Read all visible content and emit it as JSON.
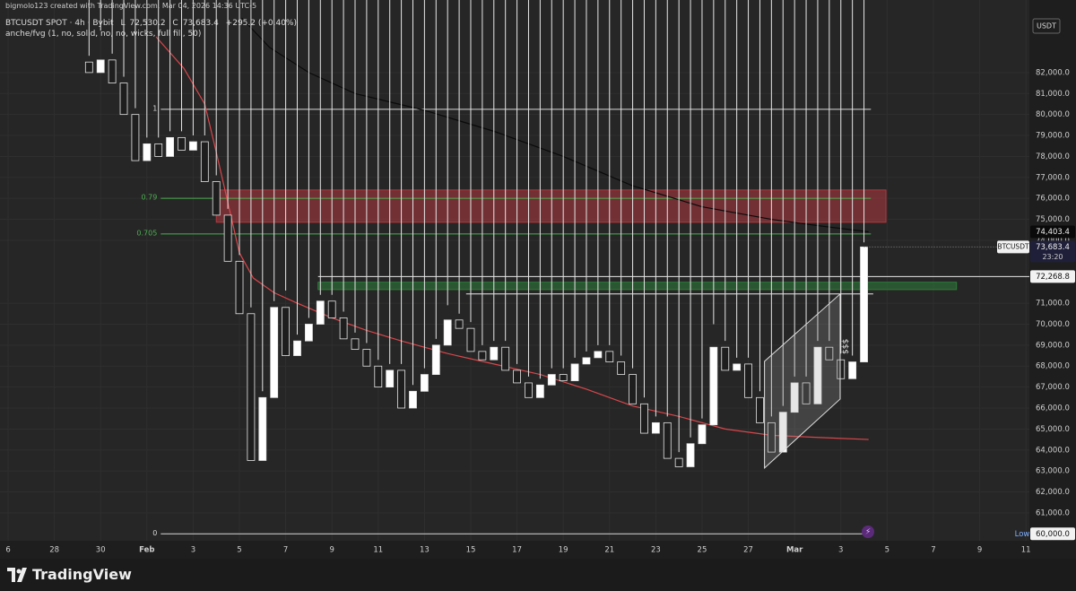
{
  "header": {
    "credit": "bigmolo123 created with TradingView.com, Mar 04, 2026 14:36 UTC-5",
    "symbol": "BTCUSDT SPOT · 4h · Bybit",
    "ohlc": [
      "L",
      "72,530.2",
      "C",
      "73,683.4",
      "+295.2 (+0.40%)"
    ],
    "indicator": "anche/fvg (1, no, solid, no, no, wicks, full fill, 50)"
  },
  "chart_data": {
    "type": "candlestick",
    "symbol": "BTCUSDT",
    "currency": "USDT",
    "countdown": "23:20",
    "x": [
      3.5,
      4,
      4.5,
      5,
      5.5,
      6,
      6.5,
      7,
      7.5,
      8,
      8.5,
      9,
      9.5,
      10,
      10.5,
      11,
      11.5,
      12,
      12.5,
      13,
      13.5,
      14,
      14.5,
      15,
      15.5,
      16,
      16.5,
      17,
      17.5,
      18,
      18.5,
      19,
      19.5,
      20,
      20.5,
      21,
      21.5,
      22,
      22.5,
      23,
      23.5,
      24,
      24.5,
      25,
      25.5,
      26,
      26.5,
      27,
      27.5,
      28,
      28.5,
      29,
      29.5,
      30,
      30.5,
      31,
      31.5,
      32,
      32.5,
      33,
      33.5,
      34,
      34.5,
      35,
      35.5,
      36,
      36.5,
      37
    ],
    "open": [
      82500,
      82000,
      82600,
      81500,
      80000,
      77800,
      78600,
      78000,
      78900,
      78300,
      78700,
      76800,
      75200,
      73000,
      70500,
      63500,
      66500,
      70800,
      68500,
      69200,
      70000,
      71100,
      70300,
      69300,
      68800,
      68000,
      67000,
      67800,
      66000,
      66800,
      67600,
      69000,
      70200,
      69800,
      68700,
      68300,
      68900,
      67800,
      67200,
      66500,
      67100,
      67600,
      67300,
      68100,
      68400,
      68700,
      68200,
      67600,
      66200,
      64800,
      65300,
      63600,
      63200,
      64300,
      65200,
      68900,
      67800,
      68100,
      66500,
      65300,
      63900,
      65800,
      67200,
      66200,
      68900,
      68300,
      67400,
      68200
    ],
    "high": [
      82800,
      84000,
      82900,
      81800,
      80300,
      78900,
      78900,
      79200,
      79200,
      79000,
      79000,
      77100,
      75500,
      73300,
      70800,
      66800,
      71100,
      71600,
      69500,
      70300,
      71400,
      71400,
      70600,
      69600,
      69100,
      68300,
      68100,
      68100,
      67100,
      67900,
      69300,
      70900,
      70500,
      70100,
      69000,
      69200,
      69200,
      68100,
      67500,
      67400,
      67900,
      67900,
      68400,
      68700,
      69000,
      69000,
      68500,
      67900,
      66500,
      65600,
      65600,
      63900,
      64600,
      65500,
      70000,
      69200,
      68400,
      68400,
      66800,
      65600,
      66100,
      67500,
      67500,
      69200,
      69200,
      68600,
      68500,
      73900
    ],
    "low": {
      "text": "Low",
      "value": 60000,
      "label": "60,000.0"
    },
    "close": [
      82000,
      82600,
      81500,
      80000,
      77800,
      78600,
      78000,
      78900,
      78300,
      78700,
      76800,
      75200,
      73000,
      70500,
      63500,
      66500,
      70800,
      68500,
      69200,
      70000,
      71100,
      70300,
      69300,
      68800,
      68000,
      67000,
      67800,
      66000,
      66800,
      67600,
      69000,
      70200,
      69800,
      68700,
      68300,
      68900,
      67800,
      67200,
      66500,
      67100,
      67600,
      67300,
      68100,
      68400,
      68700,
      68200,
      67600,
      66200,
      64800,
      65300,
      63600,
      63200,
      64300,
      65200,
      68900,
      67800,
      68100,
      66500,
      65300,
      63900,
      65800,
      67200,
      66200,
      68900,
      68300,
      67400,
      68200,
      73683.4
    ],
    "up_color": "#ffffff",
    "down_color": "#1e1e1e",
    "xlim": [
      -0.35,
      44.15
    ],
    "xticks": [
      {
        "value": 0,
        "label": "6"
      },
      {
        "value": 2,
        "label": "28"
      },
      {
        "value": 4,
        "label": "30"
      },
      {
        "value": 6,
        "label": "Feb"
      },
      {
        "value": 8,
        "label": "3"
      },
      {
        "value": 10,
        "label": "5"
      },
      {
        "value": 12,
        "label": "7"
      },
      {
        "value": 14,
        "label": "9"
      },
      {
        "value": 16,
        "label": "11"
      },
      {
        "value": 18,
        "label": "13"
      },
      {
        "value": 20,
        "label": "15"
      },
      {
        "value": 22,
        "label": "17"
      },
      {
        "value": 24,
        "label": "19"
      },
      {
        "value": 26,
        "label": "21"
      },
      {
        "value": 28,
        "label": "23"
      },
      {
        "value": 30,
        "label": "25"
      },
      {
        "value": 32,
        "label": "27"
      },
      {
        "value": 34,
        "label": "Mar"
      },
      {
        "value": 36,
        "label": "3"
      },
      {
        "value": 38,
        "label": "5"
      },
      {
        "value": 40,
        "label": "7"
      },
      {
        "value": 42,
        "label": "9"
      },
      {
        "value": 44,
        "label": "11"
      }
    ],
    "ylim": [
      59670,
      84690
    ],
    "yticks": [
      {
        "value": 61000,
        "label": "61,000.0"
      },
      {
        "value": 62000,
        "label": "62,000.0"
      },
      {
        "value": 63000,
        "label": "63,000.0"
      },
      {
        "value": 64000,
        "label": "64,000.0"
      },
      {
        "value": 65000,
        "label": "65,000.0"
      },
      {
        "value": 66000,
        "label": "66,000.0"
      },
      {
        "value": 67000,
        "label": "67,000.0"
      },
      {
        "value": 68000,
        "label": "68,000.0"
      },
      {
        "value": 69000,
        "label": "69,000.0"
      },
      {
        "value": 70000,
        "label": "70,000.0"
      },
      {
        "value": 71000,
        "label": "71,000.0"
      },
      {
        "value": 74000,
        "label": "74,000.0"
      },
      {
        "value": 75000,
        "label": "75,000.0"
      },
      {
        "value": 76000,
        "label": "76,000.0"
      },
      {
        "value": 77000,
        "label": "77,000.0"
      },
      {
        "value": 78000,
        "label": "78,000.0"
      },
      {
        "value": 79000,
        "label": "79,000.0"
      },
      {
        "value": 80000,
        "label": "80,000.0"
      },
      {
        "value": 81000,
        "label": "81,000.0"
      },
      {
        "value": 82000,
        "label": "82,000.0"
      }
    ],
    "grid": true,
    "last_price": {
      "value": 73683.4,
      "label": "73,683.4"
    },
    "moving_averages": [
      {
        "color": "#d9464b",
        "x": [
          6.4,
          7.6,
          8.5,
          9,
          9.5,
          10,
          10.6,
          11.5,
          12.5,
          14,
          15.5,
          17,
          19,
          21,
          23,
          25,
          27,
          29,
          31,
          33,
          35,
          37.2
        ],
        "values": [
          83700,
          82200,
          80500,
          78200,
          75800,
          73400,
          72200,
          71500,
          71000,
          70300,
          69700,
          69200,
          68600,
          68100,
          67600,
          66900,
          66100,
          65600,
          65000,
          64700,
          64600,
          64500
        ]
      },
      {
        "color": "#0a0a0a",
        "x": [
          10.1,
          11.3,
          13,
          15,
          18,
          21,
          24,
          27,
          30,
          33,
          35,
          37.2
        ],
        "values": [
          84600,
          83200,
          82000,
          81000,
          80200,
          79200,
          78000,
          76600,
          75600,
          75000,
          74700,
          74403.4
        ],
        "last_label": {
          "value": 74403.4,
          "label": "74,403.4"
        }
      }
    ],
    "fib": {
      "x": [
        6.6,
        37.3
      ],
      "levels": [
        {
          "value": 80250,
          "label": "1"
        },
        {
          "value": 76000,
          "label": "0.79"
        },
        {
          "value": 74300,
          "label": "0.705"
        },
        {
          "value": 60000,
          "label": "0"
        }
      ]
    },
    "zones": [
      {
        "color": "#b0393f",
        "top": 76400,
        "bottom": 74860,
        "x": [
          9.0,
          37.95
        ]
      },
      {
        "color": "#2e7d3a",
        "top": 72000,
        "bottom": 71650,
        "x": [
          13.4,
          41
        ]
      }
    ],
    "levels": [
      {
        "value": 72268.8,
        "label": "72,268.8",
        "x": [
          13.4,
          44.15
        ]
      },
      {
        "value": 71440,
        "x": [
          19.8,
          37.4
        ]
      }
    ],
    "channel": {
      "label": "$$$",
      "points": [
        [
          32.7,
          68230
        ],
        [
          35.97,
          71440
        ],
        [
          35.97,
          66430
        ],
        [
          32.7,
          63140
        ]
      ]
    }
  },
  "footer": {
    "brand": "TradingView"
  }
}
